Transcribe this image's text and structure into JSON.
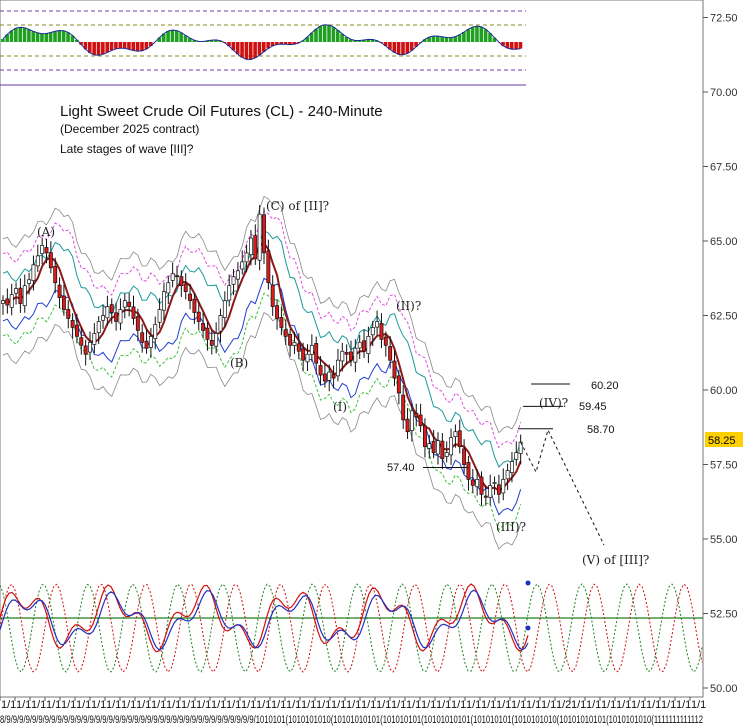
{
  "chart_data": {
    "type": "candlestick",
    "title": "Light Sweet Crude Oil Futures (CL) - 240-Minute",
    "subtitle": "(December 2025 contract)",
    "note": "Late stages of wave [III]?",
    "y_axis": {
      "side": "right",
      "range": [
        50.0,
        73.0
      ],
      "ticks": [
        "72.50",
        "70.00",
        "67.50",
        "65.00",
        "62.50",
        "60.00",
        "57.50",
        "55.00",
        "52.50",
        "50.00"
      ]
    },
    "last_price": {
      "label": "58.25",
      "value": 58.25,
      "color": "#ffd000"
    },
    "x_tick_labels": [
      "1/1",
      "1/1",
      "1/1",
      "1/1",
      "1/1",
      "1/1",
      "1/1",
      "1/1",
      "1/1",
      "1/1",
      "1/1",
      "1/1",
      "1/1",
      "1/1",
      "1/1",
      "1/1",
      "1/1",
      "1/1",
      "1/1",
      "1/1",
      "1/1",
      "1/1",
      "1/1",
      "1/1",
      "1/1",
      "1/1",
      "1/1",
      "1/1",
      "1/1",
      "1/1",
      "1/1",
      "1/1",
      "1/1",
      "1/1",
      "1/1",
      "1/1",
      "1/1",
      "1/2",
      "1/1",
      "1/1",
      "1/1",
      "1/1",
      "1/1",
      "1/1",
      "1/1",
      "1/1",
      "1/1"
    ],
    "x_date_row": "8/9/9/9/9/9/9/9/9/9/9/9/9/9/9/9/9/9/9/9/9/9/9/9/9/9/9/9/9/9/9/9/9/9/9/9/9/9/9/9/1010101(1010101010(10101010101(101010101(10101010101(101010101(1010101010(10101010101(1010101010(1111111111112",
    "closes": [
      63.0,
      62.85,
      63.2,
      63.4,
      62.9,
      63.5,
      63.7,
      64.2,
      64.5,
      64.85,
      64.6,
      64.1,
      63.6,
      63.1,
      62.7,
      62.4,
      62.1,
      61.8,
      61.5,
      61.2,
      61.6,
      61.9,
      62.3,
      62.5,
      62.8,
      62.6,
      62.3,
      62.7,
      63.0,
      62.8,
      62.4,
      62.0,
      61.6,
      61.4,
      61.8,
      62.2,
      62.7,
      63.3,
      63.6,
      63.9,
      63.8,
      63.5,
      63.3,
      63.0,
      62.6,
      62.3,
      62.0,
      61.7,
      61.5,
      61.9,
      62.5,
      63.0,
      63.5,
      63.8,
      64.0,
      64.3,
      64.6,
      65.1,
      64.4,
      65.9,
      64.6,
      63.6,
      62.8,
      62.4,
      62.1,
      61.8,
      61.5,
      61.6,
      61.3,
      61.0,
      61.2,
      61.5,
      60.9,
      60.5,
      60.3,
      60.6,
      60.4,
      61.0,
      61.3,
      61.2,
      61.0,
      61.4,
      61.6,
      61.3,
      61.8,
      62.1,
      62.3,
      61.7,
      61.5,
      61.0,
      60.4,
      59.9,
      59.0,
      58.6,
      59.3,
      59.1,
      58.8,
      58.1,
      58.2,
      57.9,
      58.3,
      57.7,
      57.9,
      58.4,
      58.6,
      58.1,
      57.5,
      57.0,
      56.8,
      57.0,
      56.5,
      56.4,
      56.8,
      56.9,
      56.5,
      57.0,
      57.3,
      57.6,
      57.9,
      58.25
    ],
    "labels": {
      "A": "(A)",
      "B": "(B)",
      "C": "(C) of [II]?",
      "I": "(I)",
      "II": "(II)?",
      "III": "(III)?",
      "IV": "(IV)?",
      "V": "(V) of [III]?"
    },
    "levels": [
      {
        "label": "60.20",
        "value": 60.2
      },
      {
        "label": "59.45",
        "value": 59.45
      },
      {
        "label": "58.70",
        "value": 58.7
      },
      {
        "label": "57.40",
        "value": 57.4
      }
    ],
    "projection_target": 55.0,
    "colors": {
      "up_candle": "#ffffff",
      "down_candle": "#e01a1a",
      "ma": "#8b1a1a",
      "teal_band": "#1a9a9a",
      "pink_band": "#e050e0",
      "green_band": "#40c040",
      "blue_band": "#2040d0",
      "gray_envelope": "#888888",
      "hist_up": "#20a020",
      "hist_down": "#d01010",
      "hist_line": "#1a2a9a",
      "osc_red": "#d01010",
      "osc_blue": "#2030c0",
      "osc_green": "#208020"
    }
  }
}
